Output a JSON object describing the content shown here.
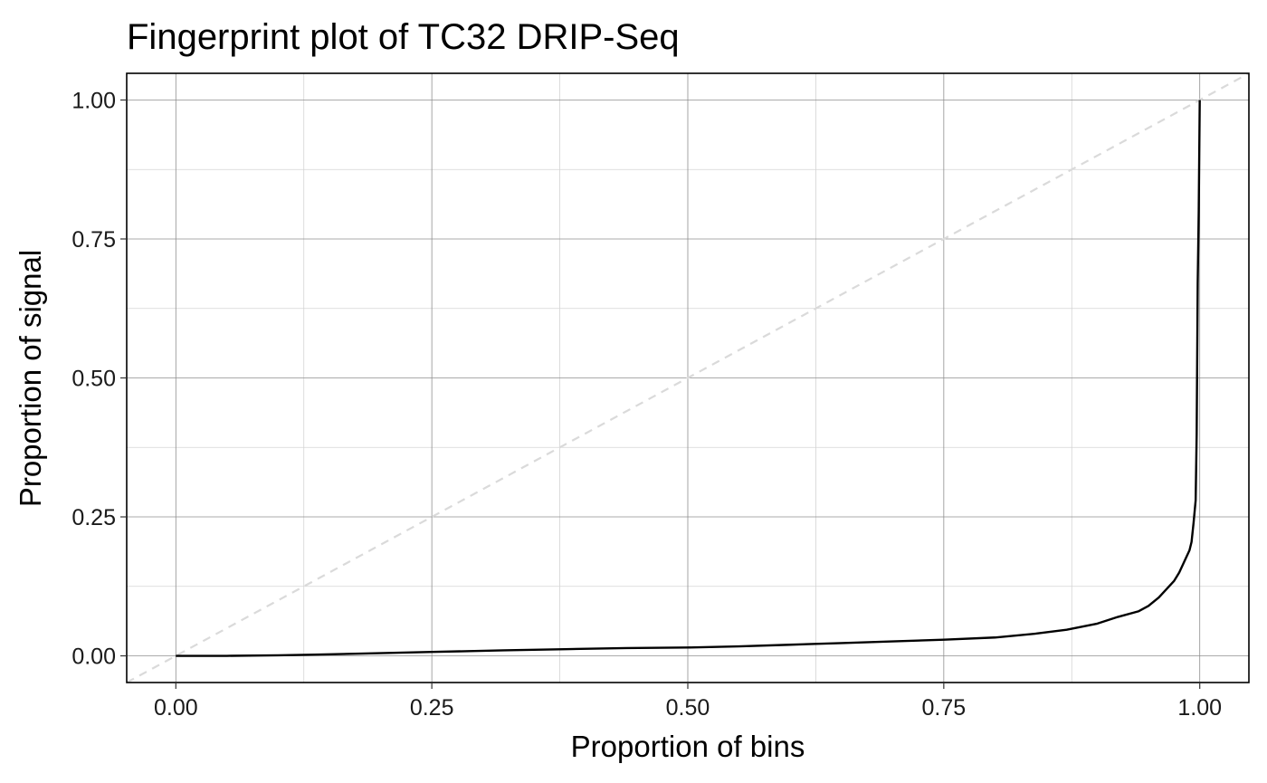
{
  "chart_data": {
    "type": "line",
    "title": "Fingerprint plot of TC32 DRIP-Seq",
    "xlabel": "Proportion of bins",
    "ylabel": "Proportion of signal",
    "xlim": [
      -0.048,
      1.048
    ],
    "ylim": [
      -0.048,
      1.048
    ],
    "x_ticks": [
      0,
      0.25,
      0.5,
      0.75,
      1
    ],
    "x_tick_labels": [
      "0.00",
      "0.25",
      "0.50",
      "0.75",
      "1.00"
    ],
    "y_ticks": [
      0,
      0.25,
      0.5,
      0.75,
      1
    ],
    "y_tick_labels": [
      "0.00",
      "0.25",
      "0.50",
      "0.75",
      "1.00"
    ],
    "grid": true,
    "reference_line": {
      "x": [
        -0.048,
        1.048
      ],
      "y": [
        -0.048,
        1.048
      ],
      "style": "dashed",
      "color": "#dadada"
    },
    "series": [
      {
        "name": "TC32 DRIP-Seq",
        "color": "#000000",
        "x": [
          0.0,
          0.05,
          0.1,
          0.13,
          0.18,
          0.25,
          0.32,
          0.38,
          0.44,
          0.5,
          0.55,
          0.6,
          0.65,
          0.7,
          0.75,
          0.8,
          0.84,
          0.87,
          0.9,
          0.92,
          0.94,
          0.95,
          0.96,
          0.97,
          0.975,
          0.98,
          0.985,
          0.99,
          0.992,
          0.994,
          0.996,
          0.997,
          0.998,
          0.999,
          1.0
        ],
        "y": [
          0.0,
          0.0,
          0.001,
          0.002,
          0.004,
          0.007,
          0.01,
          0.012,
          0.014,
          0.015,
          0.017,
          0.02,
          0.023,
          0.026,
          0.029,
          0.033,
          0.04,
          0.047,
          0.058,
          0.07,
          0.08,
          0.09,
          0.105,
          0.125,
          0.135,
          0.15,
          0.17,
          0.19,
          0.205,
          0.24,
          0.28,
          0.4,
          0.67,
          0.8,
          1.0
        ]
      }
    ]
  }
}
